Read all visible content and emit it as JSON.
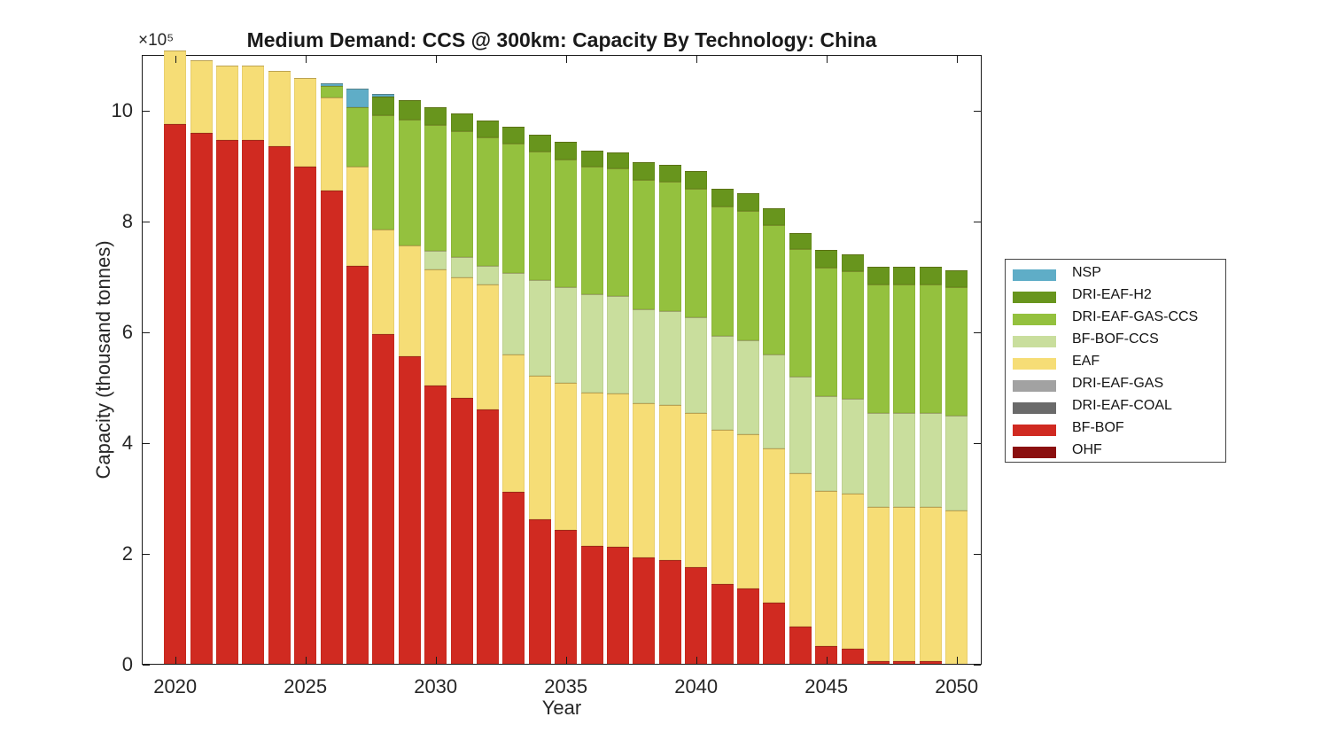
{
  "figure": {
    "title": "Medium Demand: CCS @ 300km: Capacity By Technology: China",
    "xlabel": "Year",
    "ylabel": "Capacity (thousand tonnes)",
    "y_exponent_label": "×10⁵"
  },
  "chart_data": {
    "type": "bar",
    "stacked": true,
    "title": "Medium Demand: CCS @ 300km: Capacity By Technology: China",
    "xlabel": "Year",
    "ylabel": "Capacity (thousand tonnes)",
    "y_unit_multiplier": 100000,
    "ylim": [
      0,
      11
    ],
    "y_ticks": [
      0,
      2,
      4,
      6,
      8,
      10
    ],
    "x_tick_labels": [
      "2020",
      "2025",
      "2030",
      "2035",
      "2040",
      "2045",
      "2050"
    ],
    "grid": false,
    "legend_position": "right-outside",
    "legend_order_top_to_bottom": [
      "NSP",
      "DRI-EAF-H2",
      "DRI-EAF-GAS-CCS",
      "BF-BOF-CCS",
      "EAF",
      "DRI-EAF-GAS",
      "DRI-EAF-COAL",
      "BF-BOF",
      "OHF"
    ],
    "x": [
      2020,
      2021,
      2022,
      2023,
      2024,
      2025,
      2026,
      2027,
      2028,
      2029,
      2030,
      2031,
      2032,
      2033,
      2034,
      2035,
      2036,
      2037,
      2038,
      2039,
      2040,
      2041,
      2042,
      2043,
      2044,
      2045,
      2046,
      2047,
      2048,
      2049,
      2050
    ],
    "series": [
      {
        "name": "OHF",
        "color": "#8B0F0F",
        "values": [
          0,
          0,
          0,
          0,
          0,
          0,
          0,
          0,
          0,
          0,
          0,
          0,
          0,
          0,
          0,
          0,
          0,
          0,
          0,
          0,
          0,
          0,
          0,
          0,
          0,
          0,
          0,
          0,
          0,
          0,
          0
        ]
      },
      {
        "name": "BF-BOF",
        "color": "#D02A21",
        "values": [
          9.75,
          9.6,
          9.46,
          9.46,
          9.36,
          8.98,
          8.55,
          7.2,
          5.96,
          5.57,
          5.03,
          4.81,
          4.6,
          3.12,
          2.62,
          2.43,
          2.15,
          2.12,
          1.94,
          1.88,
          1.76,
          1.45,
          1.37,
          1.12,
          0.68,
          0.34,
          0.28,
          0.07,
          0.07,
          0.07,
          0
        ]
      },
      {
        "name": "DRI-EAF-COAL",
        "color": "#6A6A6A",
        "values": [
          0,
          0,
          0,
          0,
          0,
          0,
          0,
          0,
          0,
          0,
          0,
          0,
          0,
          0,
          0,
          0,
          0,
          0,
          0,
          0,
          0,
          0,
          0,
          0,
          0,
          0,
          0,
          0,
          0,
          0,
          0
        ]
      },
      {
        "name": "DRI-EAF-GAS",
        "color": "#A2A2A2",
        "values": [
          0,
          0,
          0,
          0,
          0,
          0,
          0,
          0,
          0,
          0,
          0,
          0,
          0,
          0,
          0,
          0,
          0,
          0,
          0,
          0,
          0,
          0,
          0,
          0,
          0,
          0,
          0,
          0,
          0,
          0,
          0
        ]
      },
      {
        "name": "EAF",
        "color": "#F6DD76",
        "values": [
          1.33,
          1.3,
          1.35,
          1.35,
          1.36,
          1.6,
          1.69,
          1.78,
          1.89,
          1.99,
          2.1,
          2.18,
          2.26,
          2.47,
          2.59,
          2.65,
          2.76,
          2.77,
          2.77,
          2.8,
          2.78,
          2.78,
          2.79,
          2.78,
          2.78,
          2.8,
          2.81,
          2.77,
          2.77,
          2.77,
          2.78
        ]
      },
      {
        "name": "BF-BOF-CCS",
        "color": "#C9DE9D",
        "values": [
          0,
          0,
          0,
          0,
          0,
          0,
          0,
          0,
          0,
          0,
          0.33,
          0.36,
          0.34,
          1.48,
          1.73,
          1.73,
          1.77,
          1.76,
          1.7,
          1.7,
          1.72,
          1.7,
          1.69,
          1.7,
          1.73,
          1.71,
          1.71,
          1.7,
          1.7,
          1.7,
          1.72
        ]
      },
      {
        "name": "DRI-EAF-GAS-CCS",
        "color": "#94C13E",
        "values": [
          0,
          0,
          0,
          0,
          0,
          0,
          0.2,
          1.08,
          2.06,
          2.28,
          2.27,
          2.28,
          2.32,
          2.33,
          2.32,
          2.3,
          2.3,
          2.3,
          2.34,
          2.33,
          2.33,
          2.33,
          2.33,
          2.33,
          2.31,
          2.32,
          2.3,
          2.32,
          2.32,
          2.32,
          2.31
        ]
      },
      {
        "name": "DRI-EAF-H2",
        "color": "#68951D",
        "values": [
          0,
          0,
          0,
          0,
          0,
          0,
          0,
          0,
          0.34,
          0.35,
          0.32,
          0.31,
          0.3,
          0.3,
          0.3,
          0.32,
          0.29,
          0.29,
          0.32,
          0.31,
          0.31,
          0.32,
          0.32,
          0.31,
          0.29,
          0.31,
          0.31,
          0.32,
          0.32,
          0.32,
          0.3
        ]
      },
      {
        "name": "NSP",
        "color": "#5FADC7",
        "values": [
          0,
          0,
          0,
          0,
          0,
          0,
          0.05,
          0.34,
          0.04,
          0,
          0,
          0,
          0,
          0,
          0,
          0,
          0,
          0,
          0,
          0,
          0,
          0,
          0,
          0,
          0,
          0,
          0,
          0,
          0,
          0,
          0
        ]
      }
    ]
  }
}
